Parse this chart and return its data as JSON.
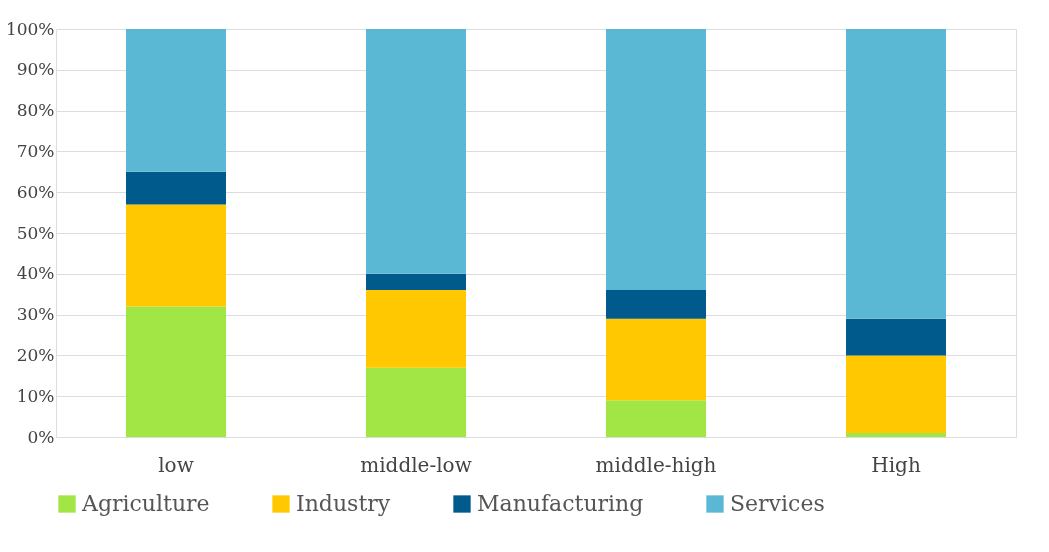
{
  "chart_data": {
    "type": "bar",
    "stacked": true,
    "categories": [
      "low",
      "middle-low",
      "middle-high",
      "High"
    ],
    "series": [
      {
        "name": "Agriculture",
        "color": "#a2e645",
        "values": [
          32,
          17,
          9,
          1
        ]
      },
      {
        "name": "Industry",
        "color": "#ffc800",
        "values": [
          25,
          19,
          20,
          19
        ]
      },
      {
        "name": "Manufacturing",
        "color": "#005a8c",
        "values": [
          8,
          4,
          7,
          9
        ]
      },
      {
        "name": "Services",
        "color": "#5bb8d4",
        "values": [
          35,
          60,
          64,
          71
        ]
      }
    ],
    "ylim": [
      0,
      100
    ],
    "yticks": [
      {
        "value": 0,
        "label": "0%"
      },
      {
        "value": 10,
        "label": "10%"
      },
      {
        "value": 20,
        "label": "20%"
      },
      {
        "value": 30,
        "label": "30%"
      },
      {
        "value": 40,
        "label": "40%"
      },
      {
        "value": 50,
        "label": "50%"
      },
      {
        "value": 60,
        "label": "60%"
      },
      {
        "value": 70,
        "label": "70%"
      },
      {
        "value": 80,
        "label": "80%"
      },
      {
        "value": 90,
        "label": "90%"
      },
      {
        "value": 100,
        "label": "100%"
      }
    ],
    "grid": "y",
    "legend": "bottom"
  }
}
